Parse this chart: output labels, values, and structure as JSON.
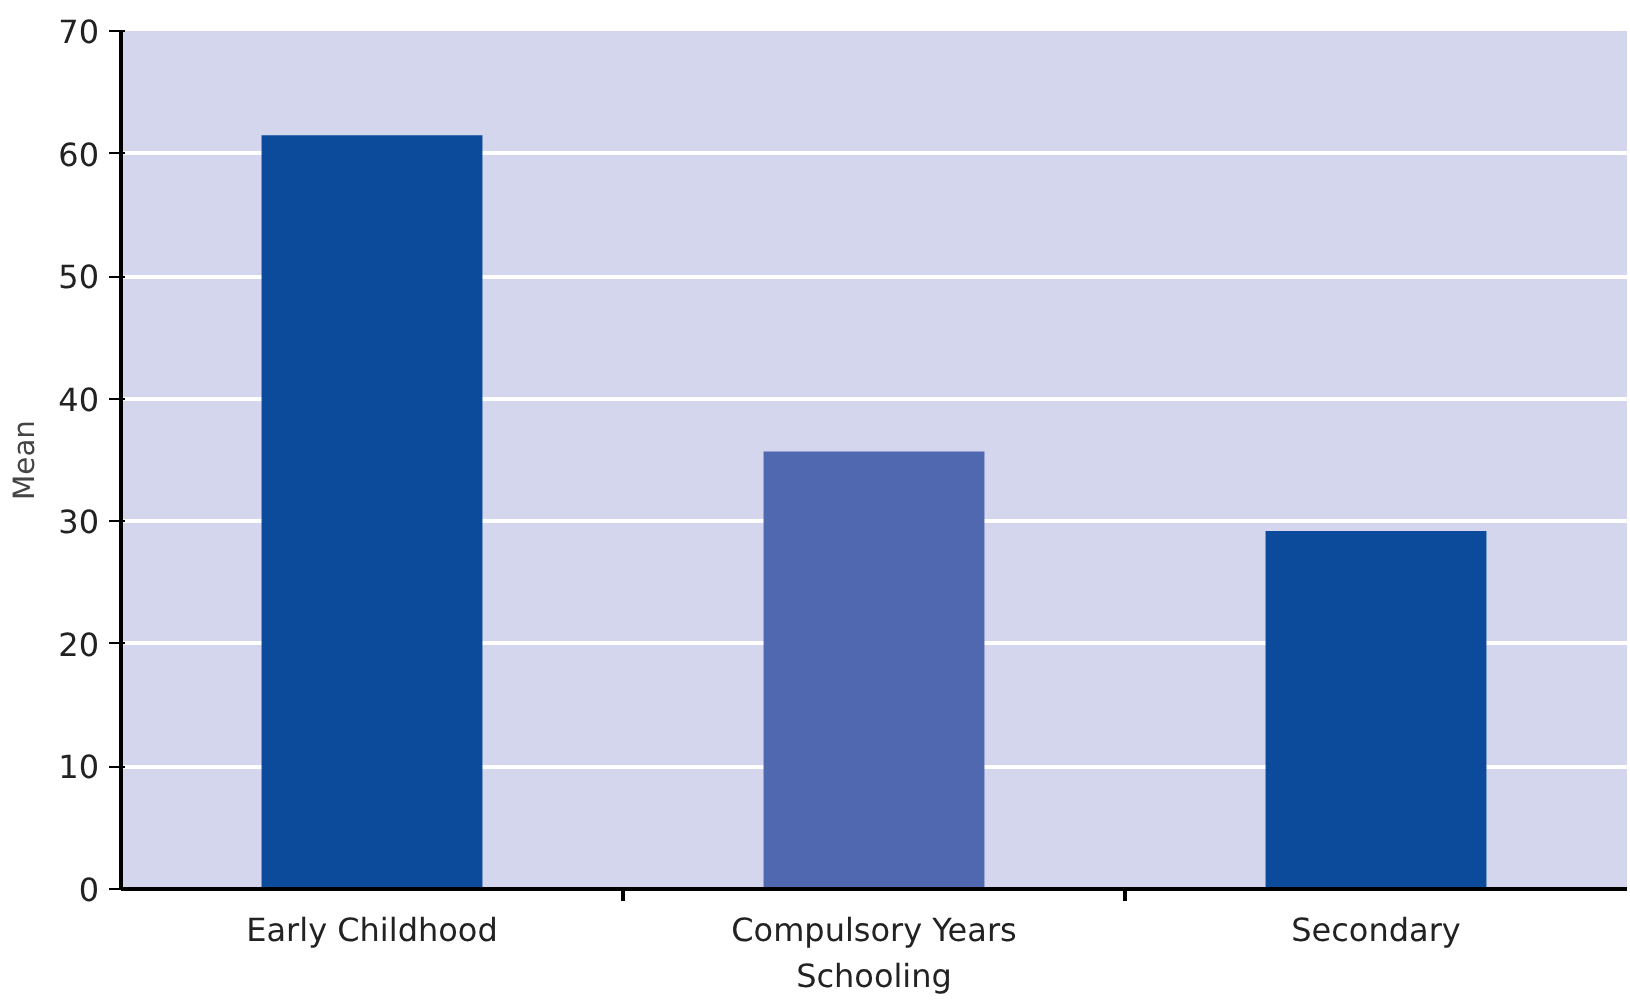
{
  "chart_data": {
    "type": "bar",
    "ylabel": "Mean",
    "categories": [
      "Early Childhood",
      "Compulsory Years\nSchooling",
      "Secondary"
    ],
    "values": [
      61.5,
      35.7,
      29.2
    ],
    "colors": [
      "#0c4a9c",
      "#5068b0",
      "#0c4a9c"
    ],
    "ylim": [
      0,
      70
    ],
    "yticks": [
      0,
      10,
      20,
      30,
      40,
      50,
      60,
      70
    ],
    "grid": "y"
  }
}
